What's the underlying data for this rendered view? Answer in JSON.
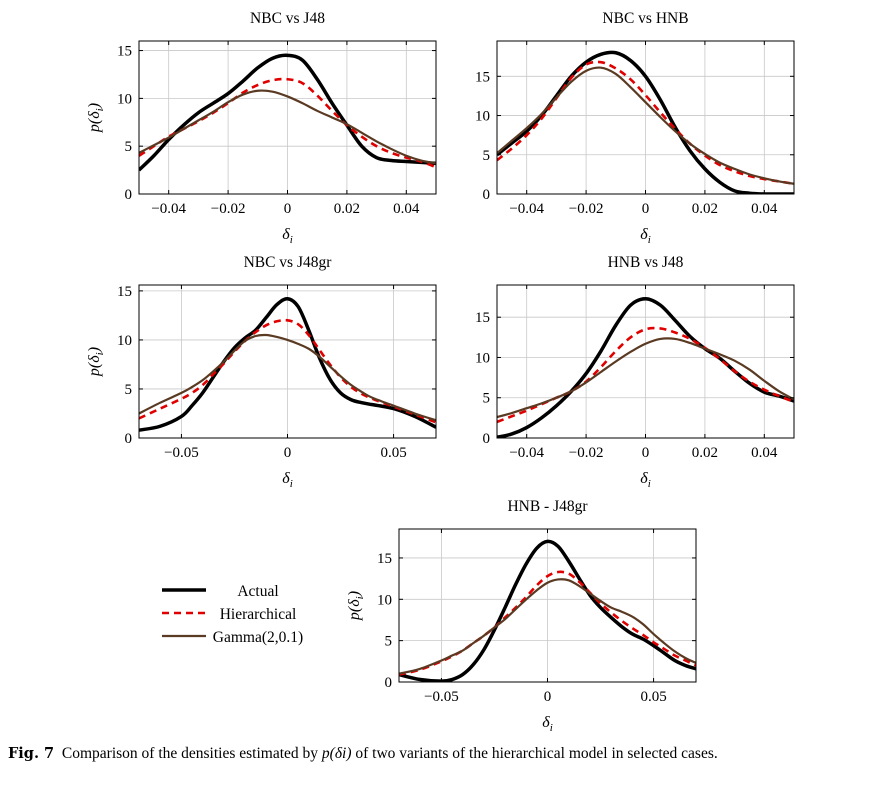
{
  "legend": {
    "items": [
      {
        "label": "Actual",
        "color": "#000000",
        "style": "solid-thick"
      },
      {
        "label": "Hierarchical",
        "color": "#e00000",
        "style": "dashed"
      },
      {
        "label": "Gamma(2,0.1)",
        "color": "#5a3a22",
        "style": "solid"
      }
    ]
  },
  "caption": {
    "label": "Fig. 7",
    "text_before": "Comparison of the densities estimated by",
    "math": "p(δi)",
    "text_after": "of two variants of the hierarchical model in selected cases."
  },
  "colors": {
    "actual": "#000000",
    "hierarchical": "#e00000",
    "gamma": "#5a3a22",
    "grid": "#c8c8c8"
  },
  "chart_data": [
    {
      "type": "line",
      "title": "NBC vs J48",
      "xlabel": "δi",
      "ylabel": "p(δi)",
      "xlim": [
        -0.05,
        0.05
      ],
      "ylim": [
        0,
        16
      ],
      "xticks": [
        -0.04,
        -0.02,
        0,
        0.02,
        0.04
      ],
      "xtick_labels": [
        "−0.04",
        "−0.02",
        "0",
        "0.02",
        "0.04"
      ],
      "yticks": [
        0,
        5,
        10,
        15
      ],
      "grid": true,
      "series": [
        {
          "name": "Actual",
          "x": [
            -0.05,
            -0.045,
            -0.04,
            -0.035,
            -0.03,
            -0.025,
            -0.02,
            -0.015,
            -0.01,
            -0.005,
            0,
            0.005,
            0.01,
            0.015,
            0.02,
            0.025,
            0.03,
            0.035,
            0.04,
            0.045,
            0.05
          ],
          "y": [
            2.5,
            4.0,
            5.7,
            7.2,
            8.5,
            9.5,
            10.5,
            11.8,
            13.2,
            14.2,
            14.5,
            14.0,
            12.0,
            9.5,
            7.2,
            5.0,
            3.8,
            3.5,
            3.4,
            3.3,
            3.2
          ]
        },
        {
          "name": "Hierarchical",
          "x": [
            -0.05,
            -0.045,
            -0.04,
            -0.035,
            -0.03,
            -0.025,
            -0.02,
            -0.015,
            -0.01,
            -0.005,
            0,
            0.005,
            0.01,
            0.015,
            0.02,
            0.025,
            0.03,
            0.035,
            0.04,
            0.045,
            0.05
          ],
          "y": [
            4.0,
            5.0,
            6.0,
            6.8,
            7.6,
            8.5,
            9.5,
            10.6,
            11.4,
            11.9,
            12.0,
            11.6,
            10.3,
            8.7,
            7.2,
            6.0,
            5.0,
            4.3,
            3.8,
            3.4,
            2.8
          ]
        },
        {
          "name": "Gamma(2,0.1)",
          "x": [
            -0.05,
            -0.045,
            -0.04,
            -0.035,
            -0.03,
            -0.025,
            -0.02,
            -0.015,
            -0.01,
            -0.005,
            0,
            0.005,
            0.01,
            0.015,
            0.02,
            0.025,
            0.03,
            0.035,
            0.04,
            0.045,
            0.05
          ],
          "y": [
            4.3,
            5.1,
            5.9,
            6.8,
            7.7,
            8.6,
            9.6,
            10.4,
            10.8,
            10.7,
            10.2,
            9.5,
            8.7,
            8.0,
            7.3,
            6.4,
            5.5,
            4.7,
            4.0,
            3.5,
            3.2
          ]
        }
      ]
    },
    {
      "type": "line",
      "title": "NBC vs HNB",
      "xlabel": "δi",
      "ylabel": "",
      "xlim": [
        -0.05,
        0.05
      ],
      "ylim": [
        0,
        19.5
      ],
      "xticks": [
        -0.04,
        -0.02,
        0,
        0.02,
        0.04
      ],
      "xtick_labels": [
        "−0.04",
        "−0.02",
        "0",
        "0.02",
        "0.04"
      ],
      "yticks": [
        0,
        5,
        10,
        15
      ],
      "grid": true,
      "series": [
        {
          "name": "Actual",
          "x": [
            -0.05,
            -0.045,
            -0.04,
            -0.035,
            -0.03,
            -0.025,
            -0.02,
            -0.015,
            -0.01,
            -0.005,
            0,
            0.005,
            0.01,
            0.015,
            0.02,
            0.025,
            0.03,
            0.035,
            0.04,
            0.045,
            0.05
          ],
          "y": [
            5.0,
            6.5,
            8.0,
            10.0,
            12.5,
            15.0,
            16.8,
            17.8,
            18.0,
            17.0,
            15.0,
            12.0,
            8.5,
            5.5,
            3.2,
            1.5,
            0.4,
            0.1,
            0.0,
            0.0,
            0.0
          ]
        },
        {
          "name": "Hierarchical",
          "x": [
            -0.05,
            -0.045,
            -0.04,
            -0.035,
            -0.03,
            -0.025,
            -0.02,
            -0.015,
            -0.01,
            -0.005,
            0,
            0.005,
            0.01,
            0.015,
            0.02,
            0.025,
            0.03,
            0.035,
            0.04,
            0.045,
            0.05
          ],
          "y": [
            4.3,
            5.8,
            7.5,
            9.6,
            12.2,
            14.8,
            16.5,
            16.8,
            16.0,
            14.6,
            12.6,
            10.4,
            8.3,
            6.4,
            4.9,
            3.7,
            2.9,
            2.3,
            1.9,
            1.6,
            1.3
          ]
        },
        {
          "name": "Gamma(2,0.1)",
          "x": [
            -0.05,
            -0.045,
            -0.04,
            -0.035,
            -0.03,
            -0.025,
            -0.02,
            -0.015,
            -0.01,
            -0.005,
            0,
            0.005,
            0.01,
            0.015,
            0.02,
            0.025,
            0.03,
            0.035,
            0.04,
            0.045,
            0.05
          ],
          "y": [
            5.2,
            6.8,
            8.4,
            10.2,
            12.3,
            14.3,
            15.7,
            16.1,
            15.3,
            13.6,
            11.7,
            9.8,
            8.0,
            6.4,
            5.1,
            4.0,
            3.2,
            2.5,
            2.0,
            1.6,
            1.3
          ]
        }
      ]
    },
    {
      "type": "line",
      "title": "NBC vs J48gr",
      "xlabel": "δi",
      "ylabel": "p(δi)",
      "xlim": [
        -0.07,
        0.07
      ],
      "ylim": [
        0,
        15.6
      ],
      "xticks": [
        -0.05,
        0,
        0.05
      ],
      "xtick_labels": [
        "−0.05",
        "0",
        "0.05"
      ],
      "yticks": [
        0,
        5,
        10,
        15
      ],
      "grid": true,
      "series": [
        {
          "name": "Actual",
          "x": [
            -0.07,
            -0.06,
            -0.05,
            -0.045,
            -0.04,
            -0.035,
            -0.03,
            -0.025,
            -0.02,
            -0.015,
            -0.01,
            -0.005,
            0,
            0.005,
            0.01,
            0.015,
            0.02,
            0.025,
            0.03,
            0.035,
            0.04,
            0.05,
            0.06,
            0.07
          ],
          "y": [
            0.8,
            1.2,
            2.2,
            3.3,
            4.6,
            6.2,
            7.8,
            9.2,
            10.2,
            11.0,
            12.3,
            13.6,
            14.2,
            13.4,
            11.0,
            8.2,
            6.0,
            4.6,
            3.9,
            3.6,
            3.4,
            3.0,
            2.2,
            1.1
          ]
        },
        {
          "name": "Hierarchical",
          "x": [
            -0.07,
            -0.06,
            -0.05,
            -0.045,
            -0.04,
            -0.035,
            -0.03,
            -0.025,
            -0.02,
            -0.015,
            -0.01,
            -0.005,
            0,
            0.005,
            0.01,
            0.015,
            0.02,
            0.025,
            0.03,
            0.035,
            0.04,
            0.05,
            0.06,
            0.07
          ],
          "y": [
            2.0,
            3.0,
            4.0,
            4.6,
            5.4,
            6.5,
            7.6,
            8.8,
            9.9,
            10.8,
            11.5,
            11.9,
            12.0,
            11.6,
            10.5,
            9.0,
            7.5,
            6.2,
            5.2,
            4.5,
            4.0,
            3.2,
            2.4,
            1.6
          ]
        },
        {
          "name": "Gamma(2,0.1)",
          "x": [
            -0.07,
            -0.06,
            -0.05,
            -0.045,
            -0.04,
            -0.035,
            -0.03,
            -0.025,
            -0.02,
            -0.015,
            -0.01,
            -0.005,
            0,
            0.005,
            0.01,
            0.015,
            0.02,
            0.025,
            0.03,
            0.035,
            0.04,
            0.05,
            0.06,
            0.07
          ],
          "y": [
            2.5,
            3.6,
            4.6,
            5.2,
            5.9,
            6.8,
            7.8,
            8.9,
            9.9,
            10.4,
            10.5,
            10.3,
            10.0,
            9.6,
            9.1,
            8.3,
            7.3,
            6.3,
            5.4,
            4.7,
            4.1,
            3.3,
            2.5,
            1.8
          ]
        }
      ]
    },
    {
      "type": "line",
      "title": "HNB vs J48",
      "xlabel": "δi",
      "ylabel": "",
      "xlim": [
        -0.05,
        0.05
      ],
      "ylim": [
        0,
        19
      ],
      "xticks": [
        -0.04,
        -0.02,
        0,
        0.02,
        0.04
      ],
      "xtick_labels": [
        "−0.04",
        "−0.02",
        "0",
        "0.02",
        "0.04"
      ],
      "yticks": [
        0,
        5,
        10,
        15
      ],
      "grid": true,
      "series": [
        {
          "name": "Actual",
          "x": [
            -0.05,
            -0.045,
            -0.04,
            -0.035,
            -0.03,
            -0.025,
            -0.02,
            -0.015,
            -0.01,
            -0.005,
            0,
            0.005,
            0.01,
            0.015,
            0.02,
            0.025,
            0.03,
            0.035,
            0.04,
            0.045,
            0.05
          ],
          "y": [
            0.1,
            0.5,
            1.3,
            2.5,
            4.0,
            5.8,
            8.0,
            10.8,
            14.0,
            16.5,
            17.3,
            16.5,
            14.6,
            12.6,
            11.1,
            9.9,
            8.3,
            6.8,
            5.7,
            5.2,
            4.6
          ]
        },
        {
          "name": "Hierarchical",
          "x": [
            -0.05,
            -0.045,
            -0.04,
            -0.035,
            -0.03,
            -0.025,
            -0.02,
            -0.015,
            -0.01,
            -0.005,
            0,
            0.005,
            0.01,
            0.015,
            0.02,
            0.025,
            0.03,
            0.035,
            0.04,
            0.045,
            0.05
          ],
          "y": [
            2.0,
            2.7,
            3.4,
            4.2,
            5.0,
            5.8,
            7.0,
            8.8,
            10.8,
            12.5,
            13.5,
            13.6,
            13.1,
            12.3,
            11.2,
            9.8,
            8.3,
            7.0,
            6.0,
            5.2,
            4.5
          ]
        },
        {
          "name": "Gamma(2,0.1)",
          "x": [
            -0.05,
            -0.045,
            -0.04,
            -0.035,
            -0.03,
            -0.025,
            -0.02,
            -0.015,
            -0.01,
            -0.005,
            0,
            0.005,
            0.01,
            0.015,
            0.02,
            0.025,
            0.03,
            0.035,
            0.04,
            0.045,
            0.05
          ],
          "y": [
            2.6,
            3.1,
            3.7,
            4.3,
            5.0,
            5.8,
            6.9,
            8.2,
            9.5,
            10.7,
            11.7,
            12.3,
            12.3,
            11.8,
            11.1,
            10.4,
            9.6,
            8.5,
            7.1,
            5.8,
            4.8
          ]
        }
      ]
    },
    {
      "type": "line",
      "title": "HNB - J48gr",
      "xlabel": "δi",
      "ylabel": "p(δi)",
      "xlim": [
        -0.07,
        0.07
      ],
      "ylim": [
        0,
        18.5
      ],
      "xticks": [
        -0.05,
        0,
        0.05
      ],
      "xtick_labels": [
        "−0.05",
        "0",
        "0.05"
      ],
      "yticks": [
        0,
        5,
        10,
        15
      ],
      "grid": true,
      "series": [
        {
          "name": "Actual",
          "x": [
            -0.07,
            -0.06,
            -0.05,
            -0.045,
            -0.04,
            -0.035,
            -0.03,
            -0.025,
            -0.02,
            -0.015,
            -0.01,
            -0.005,
            0,
            0.005,
            0.01,
            0.015,
            0.02,
            0.025,
            0.03,
            0.035,
            0.04,
            0.045,
            0.05,
            0.055,
            0.06,
            0.065,
            0.07
          ],
          "y": [
            0.9,
            0.3,
            0.1,
            0.3,
            0.9,
            2.1,
            3.9,
            6.3,
            9.0,
            11.8,
            14.3,
            16.2,
            17.0,
            16.4,
            14.6,
            12.5,
            10.5,
            9.0,
            7.8,
            6.7,
            5.8,
            5.2,
            4.4,
            3.5,
            2.6,
            2.0,
            1.6
          ]
        },
        {
          "name": "Hierarchical",
          "x": [
            -0.07,
            -0.06,
            -0.05,
            -0.045,
            -0.04,
            -0.035,
            -0.03,
            -0.025,
            -0.02,
            -0.015,
            -0.01,
            -0.005,
            0,
            0.005,
            0.01,
            0.015,
            0.02,
            0.025,
            0.03,
            0.035,
            0.04,
            0.045,
            0.05,
            0.055,
            0.06,
            0.065,
            0.07
          ],
          "y": [
            0.9,
            1.5,
            2.5,
            3.1,
            3.8,
            4.7,
            5.6,
            6.6,
            7.8,
            9.0,
            10.3,
            11.7,
            12.8,
            13.3,
            13.1,
            12.1,
            10.8,
            9.5,
            8.4,
            7.4,
            6.5,
            5.7,
            4.8,
            4.0,
            3.2,
            2.6,
            2.0
          ]
        },
        {
          "name": "Gamma(2,0.1)",
          "x": [
            -0.07,
            -0.06,
            -0.05,
            -0.045,
            -0.04,
            -0.035,
            -0.03,
            -0.025,
            -0.02,
            -0.015,
            -0.01,
            -0.005,
            0,
            0.005,
            0.01,
            0.015,
            0.02,
            0.025,
            0.03,
            0.035,
            0.04,
            0.045,
            0.05,
            0.055,
            0.06,
            0.065,
            0.07
          ],
          "y": [
            1.0,
            1.6,
            2.6,
            3.2,
            3.8,
            4.7,
            5.6,
            6.6,
            7.6,
            8.8,
            10.0,
            11.1,
            12.0,
            12.4,
            12.3,
            11.6,
            10.7,
            9.8,
            9.0,
            8.5,
            7.9,
            7.0,
            5.8,
            4.7,
            3.7,
            2.9,
            2.3
          ]
        }
      ]
    }
  ]
}
